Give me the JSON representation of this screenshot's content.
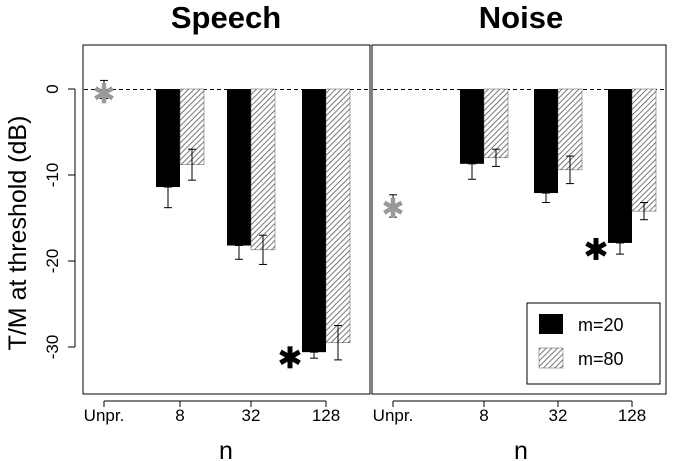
{
  "chart_data": {
    "type": "bar",
    "ylabel": "T/M at threshold (dB)",
    "xlabel": "n",
    "ylim": [
      -35,
      5
    ],
    "y_ticks": [
      0,
      -10,
      -20,
      -30
    ],
    "categories": [
      "Unpr.",
      "8",
      "32",
      "128"
    ],
    "reference_line": 0,
    "legend": {
      "position": "bottom-right",
      "entries": [
        {
          "label": "m=20",
          "style": "solid",
          "color": "#000000"
        },
        {
          "label": "m=80",
          "style": "hatched",
          "color": "#555555"
        }
      ]
    },
    "panels": [
      {
        "title": "Speech",
        "unprocessed": {
          "value": -0.5,
          "err_low": -1.1,
          "err_high": 1.0,
          "color": "#999999"
        },
        "series": [
          {
            "name": "m=20",
            "values": [
              null,
              -11.4,
              -18.2,
              -30.6
            ],
            "err_low": [
              null,
              -13.8,
              -19.8,
              -31.3
            ],
            "err_high": [
              null,
              -11.4,
              -18.2,
              -30.6
            ]
          },
          {
            "name": "m=80",
            "values": [
              null,
              -8.8,
              -18.7,
              -29.5
            ],
            "err_low": [
              null,
              -10.6,
              -20.4,
              -31.5
            ],
            "err_high": [
              null,
              -7.0,
              -17.0,
              -27.5
            ]
          }
        ],
        "significance_marker": {
          "category": "128",
          "symbol": "*",
          "y": -31.2
        }
      },
      {
        "title": "Noise",
        "unprocessed": {
          "value": -13.8,
          "err_low": -14.9,
          "err_high": -12.3,
          "color": "#999999"
        },
        "series": [
          {
            "name": "m=20",
            "values": [
              null,
              -8.7,
              -12.1,
              -17.9
            ],
            "err_low": [
              null,
              -10.5,
              -13.2,
              -19.2
            ],
            "err_high": [
              null,
              -8.7,
              -12.1,
              -17.9
            ]
          },
          {
            "name": "m=80",
            "values": [
              null,
              -8.0,
              -9.4,
              -14.2
            ],
            "err_low": [
              null,
              -9.0,
              -11.0,
              -15.2
            ],
            "err_high": [
              null,
              -7.0,
              -7.8,
              -13.2
            ]
          }
        ],
        "significance_marker": {
          "category": "128",
          "symbol": "*",
          "y": -18.6
        }
      }
    ]
  }
}
